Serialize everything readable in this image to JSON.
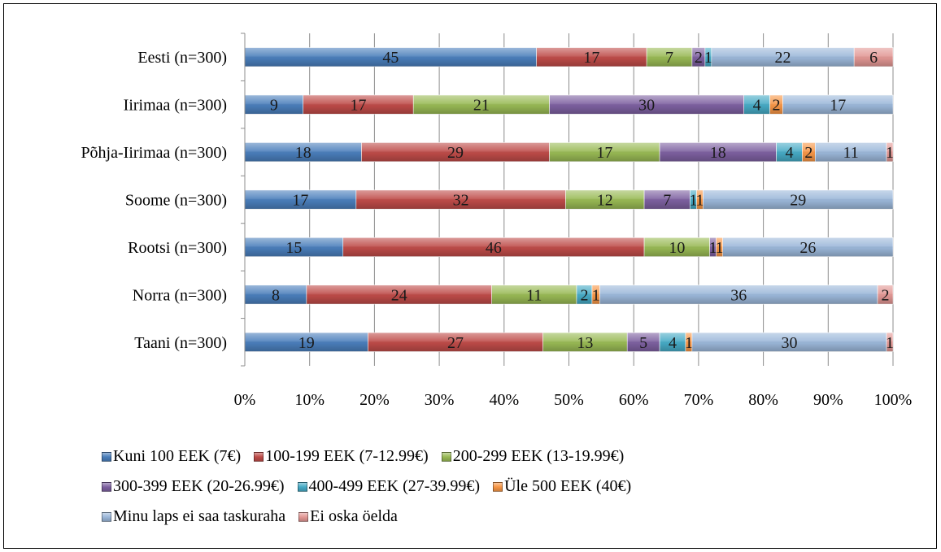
{
  "chart_data": {
    "type": "bar",
    "orientation": "horizontal",
    "stacked": "percent",
    "categories": [
      "Eesti (n=300)",
      "Iirimaa (n=300)",
      "Põhja-Iirimaa (n=300)",
      "Soome (n=300)",
      "Rootsi (n=300)",
      "Norra (n=300)",
      "Taani (n=300)"
    ],
    "series": [
      {
        "name": "Kuni 100 EEK (7€)",
        "color": "#4a7ebb",
        "values": [
          45,
          9,
          18,
          17,
          15,
          8,
          19
        ]
      },
      {
        "name": "100-199 EEK (7-12.99€)",
        "color": "#be4b48",
        "values": [
          17,
          17,
          29,
          32,
          46,
          24,
          27
        ]
      },
      {
        "name": "200-299 EEK (13-19.99€)",
        "color": "#98b954",
        "values": [
          7,
          21,
          17,
          12,
          10,
          11,
          13
        ]
      },
      {
        "name": "300-399 EEK (20-26.99€)",
        "color": "#7d60a0",
        "values": [
          2,
          30,
          18,
          7,
          1,
          0,
          5
        ]
      },
      {
        "name": "400-499 EEK (27-39.99€)",
        "color": "#46aac5",
        "values": [
          1,
          4,
          4,
          1,
          0,
          2,
          4
        ]
      },
      {
        "name": "Üle 500 EEK (40€)",
        "color": "#f79646",
        "values": [
          0,
          2,
          2,
          1,
          1,
          1,
          1
        ]
      },
      {
        "name": "Minu laps ei saa taskuraha",
        "color": "#9bb7d9",
        "values": [
          22,
          17,
          11,
          29,
          26,
          36,
          30
        ]
      },
      {
        "name": "Ei oska öelda",
        "color": "#e29794",
        "values": [
          6,
          0,
          1,
          0,
          0,
          2,
          1
        ]
      }
    ],
    "xticks": [
      "0%",
      "10%",
      "20%",
      "30%",
      "40%",
      "50%",
      "60%",
      "70%",
      "80%",
      "90%",
      "100%"
    ],
    "xlim": [
      0,
      100
    ],
    "grid": true,
    "legend_position": "bottom"
  }
}
